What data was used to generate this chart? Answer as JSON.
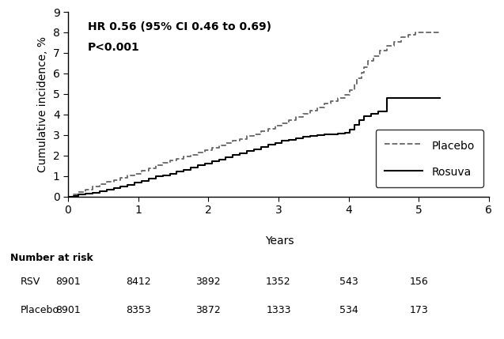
{
  "ylabel": "Cumulative incidence, %",
  "xlabel": "Years",
  "xlim": [
    0,
    6
  ],
  "ylim": [
    0,
    9
  ],
  "xticks": [
    0,
    1,
    2,
    3,
    4,
    5,
    6
  ],
  "yticks": [
    0,
    1,
    2,
    3,
    4,
    5,
    6,
    7,
    8,
    9
  ],
  "annotation_line1": "HR 0.56 (95% CI 0.46 to 0.69)",
  "annotation_line2": "P<0.001",
  "placebo_x": [
    0,
    0.08,
    0.15,
    0.25,
    0.35,
    0.45,
    0.55,
    0.65,
    0.75,
    0.85,
    0.95,
    1.05,
    1.15,
    1.25,
    1.35,
    1.45,
    1.55,
    1.65,
    1.75,
    1.85,
    1.95,
    2.05,
    2.15,
    2.25,
    2.35,
    2.45,
    2.55,
    2.65,
    2.75,
    2.85,
    2.95,
    3.05,
    3.15,
    3.25,
    3.35,
    3.45,
    3.55,
    3.65,
    3.75,
    3.85,
    3.95,
    4.02,
    4.08,
    4.12,
    4.18,
    4.22,
    4.28,
    4.35,
    4.45,
    4.55,
    4.65,
    4.75,
    4.85,
    4.95,
    5.1,
    5.3
  ],
  "placebo_y": [
    0,
    0.12,
    0.22,
    0.35,
    0.5,
    0.62,
    0.72,
    0.82,
    0.92,
    1.02,
    1.12,
    1.25,
    1.38,
    1.52,
    1.65,
    1.75,
    1.85,
    1.95,
    2.05,
    2.15,
    2.25,
    2.38,
    2.5,
    2.6,
    2.72,
    2.82,
    2.95,
    3.05,
    3.2,
    3.32,
    3.45,
    3.58,
    3.72,
    3.88,
    4.02,
    4.18,
    4.35,
    4.52,
    4.65,
    4.8,
    4.95,
    5.2,
    5.5,
    5.75,
    6.05,
    6.3,
    6.6,
    6.85,
    7.1,
    7.35,
    7.55,
    7.75,
    7.9,
    8.0,
    8.0,
    8.0
  ],
  "rosuvastatin_x": [
    0,
    0.08,
    0.15,
    0.25,
    0.35,
    0.45,
    0.55,
    0.65,
    0.75,
    0.85,
    0.95,
    1.05,
    1.15,
    1.25,
    1.35,
    1.45,
    1.55,
    1.65,
    1.75,
    1.85,
    1.95,
    2.05,
    2.15,
    2.25,
    2.35,
    2.45,
    2.55,
    2.65,
    2.75,
    2.85,
    2.95,
    3.05,
    3.15,
    3.25,
    3.35,
    3.45,
    3.55,
    3.65,
    3.75,
    3.85,
    3.95,
    4.02,
    4.08,
    4.15,
    4.22,
    4.32,
    4.42,
    4.55,
    4.75,
    4.95,
    5.1,
    5.3
  ],
  "rosuvastatin_y": [
    0,
    0.05,
    0.1,
    0.15,
    0.2,
    0.28,
    0.35,
    0.42,
    0.5,
    0.58,
    0.68,
    0.78,
    0.88,
    0.98,
    1.05,
    1.12,
    1.22,
    1.32,
    1.42,
    1.52,
    1.62,
    1.72,
    1.82,
    1.92,
    2.02,
    2.12,
    2.22,
    2.32,
    2.42,
    2.52,
    2.62,
    2.72,
    2.78,
    2.85,
    2.92,
    2.95,
    2.98,
    3.02,
    3.05,
    3.08,
    3.12,
    3.25,
    3.5,
    3.72,
    3.92,
    4.05,
    4.15,
    4.82,
    4.82,
    4.82,
    4.82,
    4.82
  ],
  "number_at_risk_labels": [
    "Number at risk",
    "RSV",
    "Placebo"
  ],
  "number_at_risk_years": [
    0,
    1,
    2,
    3,
    4,
    5
  ],
  "rsv_counts": [
    8901,
    8412,
    3892,
    1352,
    543,
    156
  ],
  "placebo_counts": [
    8901,
    8353,
    3872,
    1333,
    534,
    173
  ],
  "legend_labels": [
    "Placebo",
    "Rosuva"
  ],
  "placebo_color": "#666666",
  "rosuvastatin_color": "#000000",
  "background_color": "#ffffff",
  "font_size": 10,
  "annotation_fontsize": 10,
  "number_at_risk_fontsize": 9
}
